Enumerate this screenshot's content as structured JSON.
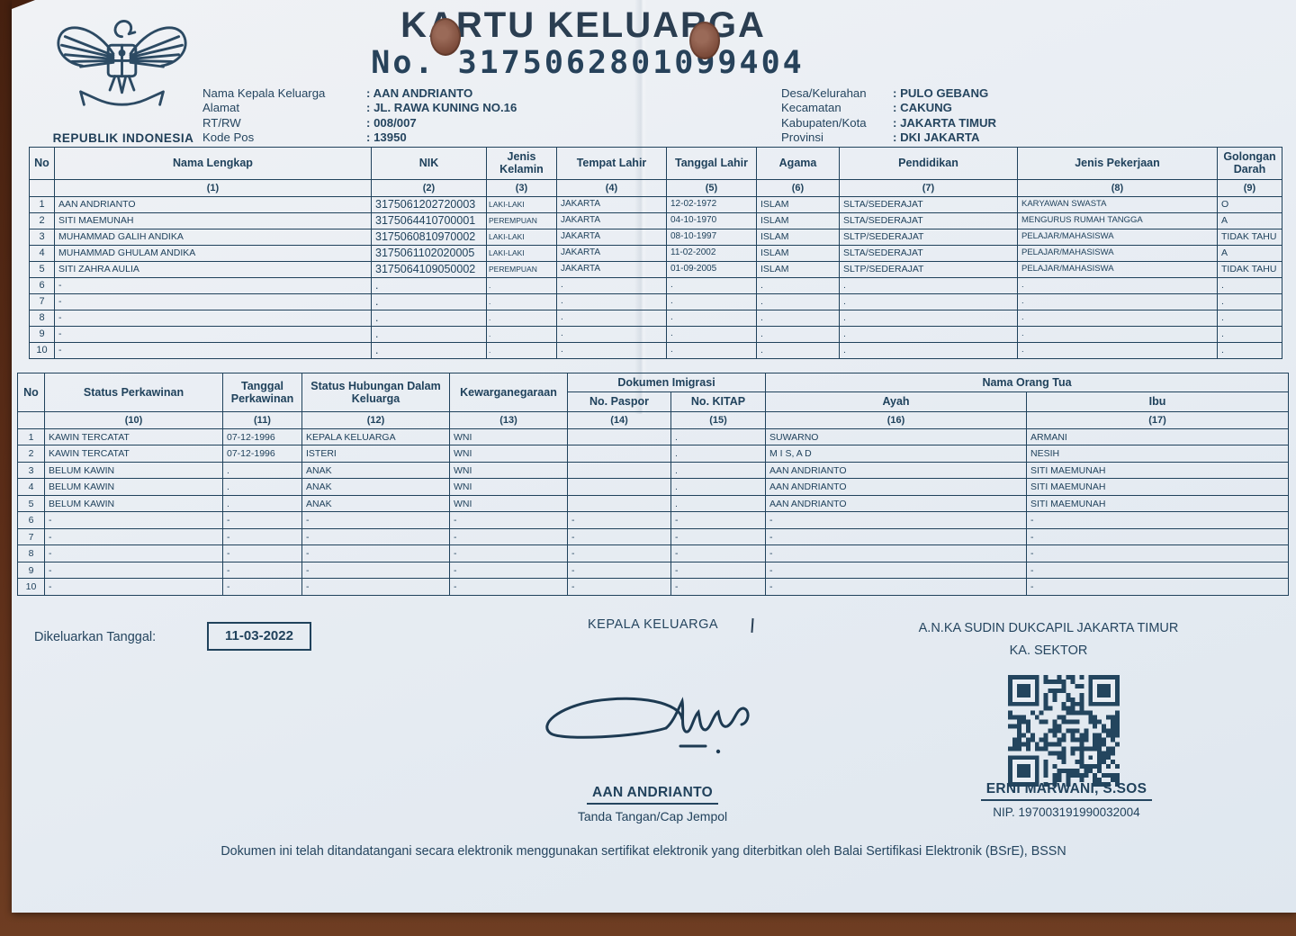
{
  "document": {
    "title": "KARTU KELUARGA",
    "number": "No. 3175062801099404",
    "emblem_caption": "REPUBLIK INDONESIA"
  },
  "colors": {
    "ink": "#20425c",
    "paper": "#e8edf3",
    "background_wood": "#5b2d18",
    "punch_hole": "#7c4b3a"
  },
  "header_left": {
    "rows": [
      {
        "label": "Nama Kepala Keluarga",
        "value": "AAN ANDRIANTO"
      },
      {
        "label": "Alamat",
        "value": "JL. RAWA KUNING NO.16"
      },
      {
        "label": "RT/RW",
        "value": "008/007"
      },
      {
        "label": "Kode Pos",
        "value": "13950"
      }
    ]
  },
  "header_right": {
    "rows": [
      {
        "label": "Desa/Kelurahan",
        "value": "PULO GEBANG"
      },
      {
        "label": "Kecamatan",
        "value": "CAKUNG"
      },
      {
        "label": "Kabupaten/Kota",
        "value": "JAKARTA TIMUR"
      },
      {
        "label": "Provinsi",
        "value": "DKI JAKARTA"
      }
    ]
  },
  "table1": {
    "headers": [
      "No",
      "Nama Lengkap",
      "NIK",
      "Jenis Kelamin",
      "Tempat Lahir",
      "Tanggal Lahir",
      "Agama",
      "Pendidikan",
      "Jenis Pekerjaan",
      "Golongan Darah"
    ],
    "numbers": [
      "",
      "(1)",
      "(2)",
      "(3)",
      "(4)",
      "(5)",
      "(6)",
      "(7)",
      "(8)",
      "(9)"
    ],
    "rows": [
      [
        "1",
        "AAN ANDRIANTO",
        "3175061202720003",
        "LAKI-LAKI",
        "JAKARTA",
        "12-02-1972",
        "ISLAM",
        "SLTA/SEDERAJAT",
        "KARYAWAN SWASTA",
        "O"
      ],
      [
        "2",
        "SITI MAEMUNAH",
        "3175064410700001",
        "PEREMPUAN",
        "JAKARTA",
        "04-10-1970",
        "ISLAM",
        "SLTA/SEDERAJAT",
        "MENGURUS RUMAH TANGGA",
        "A"
      ],
      [
        "3",
        "MUHAMMAD GALIH ANDIKA",
        "3175060810970002",
        "LAKI-LAKI",
        "JAKARTA",
        "08-10-1997",
        "ISLAM",
        "SLTP/SEDERAJAT",
        "PELAJAR/MAHASISWA",
        "TIDAK TAHU"
      ],
      [
        "4",
        "MUHAMMAD GHULAM ANDIKA",
        "3175061102020005",
        "LAKI-LAKI",
        "JAKARTA",
        "11-02-2002",
        "ISLAM",
        "SLTA/SEDERAJAT",
        "PELAJAR/MAHASISWA",
        "A"
      ],
      [
        "5",
        "SITI ZAHRA AULIA",
        "3175064109050002",
        "PEREMPUAN",
        "JAKARTA",
        "01-09-2005",
        "ISLAM",
        "SLTP/SEDERAJAT",
        "PELAJAR/MAHASISWA",
        "TIDAK TAHU"
      ],
      [
        "6",
        "-",
        ".",
        ".",
        ".",
        ".",
        ".",
        ".",
        ".",
        "."
      ],
      [
        "7",
        "-",
        ".",
        ".",
        ".",
        ".",
        ".",
        ".",
        ".",
        "."
      ],
      [
        "8",
        "-",
        ".",
        ".",
        ".",
        ".",
        ".",
        ".",
        ".",
        "."
      ],
      [
        "9",
        "-",
        ".",
        ".",
        ".",
        ".",
        ".",
        ".",
        ".",
        "."
      ],
      [
        "10",
        "-",
        ".",
        ".",
        ".",
        ".",
        ".",
        ".",
        ".",
        "."
      ]
    ]
  },
  "table2": {
    "headers": [
      "No",
      "Status Perkawinan",
      "Tanggal Perkawinan",
      "Status Hubungan Dalam Keluarga",
      "Kewarganegaraan"
    ],
    "groups": [
      "Dokumen Imigrasi",
      "Nama Orang Tua"
    ],
    "sub_headers": [
      "No. Paspor",
      "No. KITAP",
      "Ayah",
      "Ibu"
    ],
    "numbers": [
      "",
      "(10)",
      "(11)",
      "(12)",
      "(13)",
      "(14)",
      "(15)",
      "(16)",
      "(17)"
    ],
    "rows": [
      [
        "1",
        "KAWIN TERCATAT",
        "07-12-1996",
        "KEPALA KELUARGA",
        "WNI",
        "",
        ".",
        "SUWARNO",
        "ARMANI"
      ],
      [
        "2",
        "KAWIN TERCATAT",
        "07-12-1996",
        "ISTERI",
        "WNI",
        "",
        ".",
        "M I S, A D",
        "NESIH"
      ],
      [
        "3",
        "BELUM KAWIN",
        ".",
        "ANAK",
        "WNI",
        "",
        ".",
        "AAN ANDRIANTO",
        "SITI MAEMUNAH"
      ],
      [
        "4",
        "BELUM KAWIN",
        ".",
        "ANAK",
        "WNI",
        "",
        ".",
        "AAN ANDRIANTO",
        "SITI MAEMUNAH"
      ],
      [
        "5",
        "BELUM KAWIN",
        ".",
        "ANAK",
        "WNI",
        "",
        ".",
        "AAN ANDRIANTO",
        "SITI MAEMUNAH"
      ],
      [
        "6",
        "-",
        "-",
        "-",
        "-",
        "-",
        "-",
        "-",
        "-"
      ],
      [
        "7",
        "-",
        "-",
        "-",
        "-",
        "-",
        "-",
        "-",
        "-"
      ],
      [
        "8",
        "-",
        "-",
        "-",
        "-",
        "-",
        "-",
        "-",
        "-"
      ],
      [
        "9",
        "-",
        "-",
        "-",
        "-",
        "-",
        "-",
        "-",
        "-"
      ],
      [
        "10",
        "-",
        "-",
        "-",
        "-",
        "-",
        "-",
        "-",
        "-"
      ]
    ]
  },
  "footer": {
    "issued_label": "Dikeluarkan Tanggal:",
    "issued_date": "11-03-2022",
    "kepala_keluarga_label": "KEPALA KELUARGA",
    "official_line1": "A.N.KA SUDIN DUKCAPIL JAKARTA TIMUR",
    "official_line2": "KA. SEKTOR",
    "signer_left_name": "AAN ANDRIANTO",
    "signer_left_caption": "Tanda Tangan/Cap Jempol",
    "signer_right_name": "ERNI MARWANI, S.SOS",
    "signer_right_nip": "NIP. 197003191990032004",
    "disclaimer": "Dokumen ini telah ditandatangani secara elektronik menggunakan sertifikat elektronik yang diterbitkan oleh Balai Sertifikasi Elektronik (BSrE), BSSN"
  }
}
